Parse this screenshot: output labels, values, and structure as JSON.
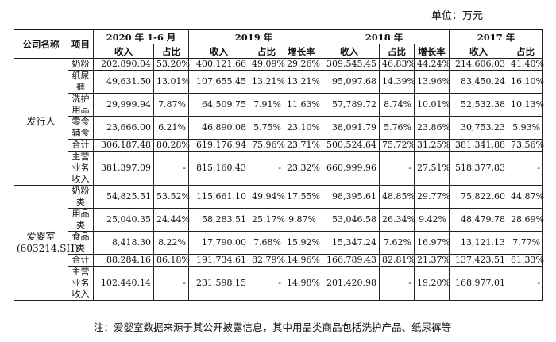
{
  "unit_label": "单位：万元",
  "headers": {
    "company": "公司名称",
    "item": "项目",
    "periods": [
      "2020 年 1-6 月",
      "2019 年",
      "2018 年",
      "2017 年"
    ],
    "income": "收入",
    "share": "占比",
    "growth": "增长率"
  },
  "groups": [
    {
      "company": "发行人",
      "rows": [
        {
          "item": "奶粉",
          "cells": [
            "202,890.04",
            "53.20%",
            "400,121.66",
            "49.09%",
            "29.26%",
            "309,545.45",
            "46.83%",
            "44.24%",
            "214,606.03",
            "41.40%"
          ]
        },
        {
          "item": "纸尿裤",
          "cells": [
            "49,631.50",
            "13.01%",
            "107,655.45",
            "13.21%",
            "13.21%",
            "95,097.68",
            "14.39%",
            "13.96%",
            "83,450.24",
            "16.10%"
          ]
        },
        {
          "item": "洗护用品",
          "cells": [
            "29,999.94",
            "7.87%",
            "64,509.75",
            "7.91%",
            "11.63%",
            "57,789.72",
            "8.74%",
            "10.01%",
            "52,532.38",
            "10.13%"
          ]
        },
        {
          "item": "零食辅食",
          "cells": [
            "23,666.00",
            "6.21%",
            "46,890.08",
            "5.75%",
            "23.10%",
            "38,091.79",
            "5.76%",
            "23.86%",
            "30,753.23",
            "5.93%"
          ]
        },
        {
          "item": "合计",
          "cells": [
            "306,187.48",
            "80.28%",
            "619,176.94",
            "75.96%",
            "23.71%",
            "500,524.64",
            "75.72%",
            "31.25%",
            "381,341.88",
            "73.56%"
          ]
        },
        {
          "item": "主营业务收入",
          "cells": [
            "381,397.09",
            "-",
            "815,160.43",
            "-",
            "23.32%",
            "660,999.96",
            "-",
            "27.51%",
            "518,377.83",
            "-"
          ]
        }
      ]
    },
    {
      "company": "爱婴室",
      "company_code": "(603214.SH)",
      "rows": [
        {
          "item": "奶粉类",
          "cells": [
            "54,825.51",
            "53.52%",
            "115,661.10",
            "49.94%",
            "17.55%",
            "98,395.61",
            "48.85%",
            "29.77%",
            "75,822.60",
            "44.87%"
          ]
        },
        {
          "item": "用品类",
          "cells": [
            "25,040.35",
            "24.44%",
            "58,283.51",
            "25.17%",
            "9.87%",
            "53,046.58",
            "26.34%",
            "9.42%",
            "48,479.78",
            "28.69%"
          ]
        },
        {
          "item": "食品类",
          "cells": [
            "8,418.30",
            "8.22%",
            "17,790.00",
            "7.68%",
            "15.92%",
            "15,347.24",
            "7.62%",
            "16.97%",
            "13,121.13",
            "7.77%"
          ]
        },
        {
          "item": "合计",
          "cells": [
            "88,284.16",
            "86.18%",
            "191,734.61",
            "82.79%",
            "14.96%",
            "166,789.43",
            "82.81%",
            "21.37%",
            "137,423.51",
            "81.33%"
          ]
        },
        {
          "item": "主营业务收入",
          "cells": [
            "102,440.14",
            "-",
            "231,598.15",
            "-",
            "14.98%",
            "201,420.98",
            "-",
            "19.20%",
            "168,977.01",
            "-"
          ]
        }
      ]
    }
  ],
  "note": "注：爱婴室数据来源于其公开披露信息，其中用品类商品包括洗护产品、纸尿裤等"
}
